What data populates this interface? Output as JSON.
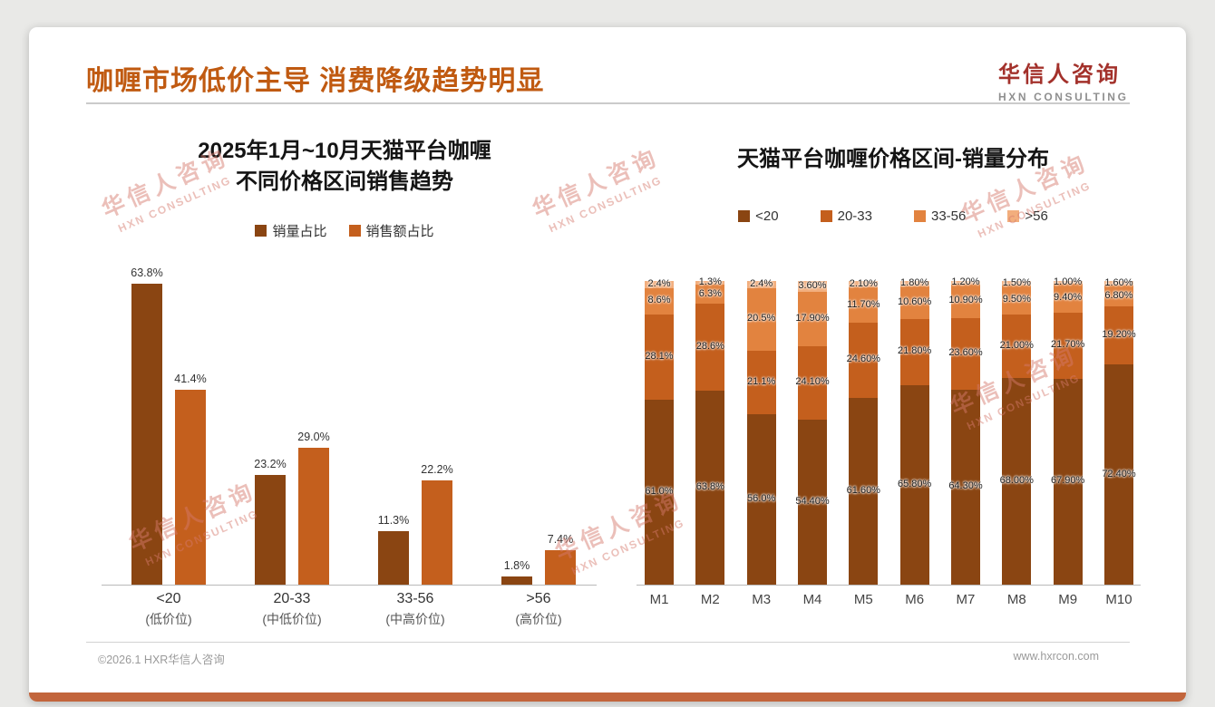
{
  "slide": {
    "title": "咖喱市场低价主导 消费降级趋势明显",
    "brand": {
      "name": "华信人咨询",
      "tagline": "HXN CONSULTING"
    },
    "watermark": {
      "line1": "华信人咨询",
      "line2": "HXN CONSULTING"
    },
    "footer": {
      "copyright": "©2026.1 HXR华信人咨询",
      "website": "www.hxrcon.com"
    },
    "colors": {
      "title": "#c05a11",
      "brand_red": "#a3312b",
      "band_lt20": "#8a4512",
      "band_20_33": "#c45f1d",
      "band_33_56": "#e2833f",
      "band_gt56": "#f2ae7d",
      "bottom_bar": "#c2653c"
    }
  },
  "chart_data": [
    {
      "id": "price-band-sales-trend",
      "type": "bar",
      "title": "2025年1月~10月天猫平台咖喱不同价格区间销售趋势",
      "title_lines": [
        "2025年1月~10月天猫平台咖喱",
        "不同价格区间销售趋势"
      ],
      "categories": [
        "<20",
        "20-33",
        "33-56",
        ">56"
      ],
      "category_sublabels": [
        "(低价位)",
        "(中低价位)",
        "(中高价位)",
        "(高价位)"
      ],
      "series": [
        {
          "name": "销量占比",
          "color": "#8a4512",
          "values": [
            63.8,
            23.2,
            11.3,
            1.8
          ],
          "labels": [
            "63.8%",
            "23.2%",
            "11.3%",
            "1.8%"
          ]
        },
        {
          "name": "销售额占比",
          "color": "#c45f1d",
          "values": [
            41.4,
            29.0,
            22.2,
            7.4
          ],
          "labels": [
            "41.4%",
            "29.0%",
            "22.2%",
            "7.4%"
          ]
        }
      ],
      "ylim": [
        0,
        70
      ],
      "grid": false,
      "legend_position": "top"
    },
    {
      "id": "monthly-price-band-mix",
      "type": "bar",
      "stacked": true,
      "normalized": true,
      "title": "天猫平台咖喱价格区间-销量分布",
      "categories": [
        "M1",
        "M2",
        "M3",
        "M4",
        "M5",
        "M6",
        "M7",
        "M8",
        "M9",
        "M10"
      ],
      "series": [
        {
          "name": "<20",
          "color": "#8a4512",
          "values": [
            61.0,
            63.8,
            56.0,
            54.4,
            61.6,
            65.8,
            64.3,
            68.0,
            67.9,
            72.4
          ],
          "labels": [
            "61.0%",
            "63.8%",
            "56.0%",
            "54.40%",
            "61.60%",
            "65.80%",
            "64.30%",
            "68.00%",
            "67.90%",
            "72.40%"
          ]
        },
        {
          "name": "20-33",
          "color": "#c45f1d",
          "values": [
            28.1,
            28.6,
            21.1,
            24.1,
            24.6,
            21.8,
            23.6,
            21.0,
            21.7,
            19.2
          ],
          "labels": [
            "28.1%",
            "28.6%",
            "21.1%",
            "24.10%",
            "24.60%",
            "21.80%",
            "23.60%",
            "21.00%",
            "21.70%",
            "19.20%"
          ]
        },
        {
          "name": "33-56",
          "color": "#e2833f",
          "values": [
            8.6,
            6.3,
            20.5,
            17.9,
            11.7,
            10.6,
            10.9,
            9.5,
            9.4,
            6.8
          ],
          "labels": [
            "8.6%",
            "6.3%",
            "20.5%",
            "17.90%",
            "11.70%",
            "10.60%",
            "10.90%",
            "9.50%",
            "9.40%",
            "6.80%"
          ]
        },
        {
          "name": ">56",
          "color": "#f2ae7d",
          "values": [
            2.4,
            1.3,
            2.4,
            3.6,
            2.1,
            1.8,
            1.2,
            1.5,
            1.0,
            1.6
          ],
          "labels": [
            "2.4%",
            "1.3%",
            "2.4%",
            "3.60%",
            "2.10%",
            "1.80%",
            "1.20%",
            "1.50%",
            "1.00%",
            "1.60%"
          ]
        }
      ],
      "ylim": [
        0,
        100
      ],
      "grid": false,
      "legend_position": "top"
    }
  ]
}
